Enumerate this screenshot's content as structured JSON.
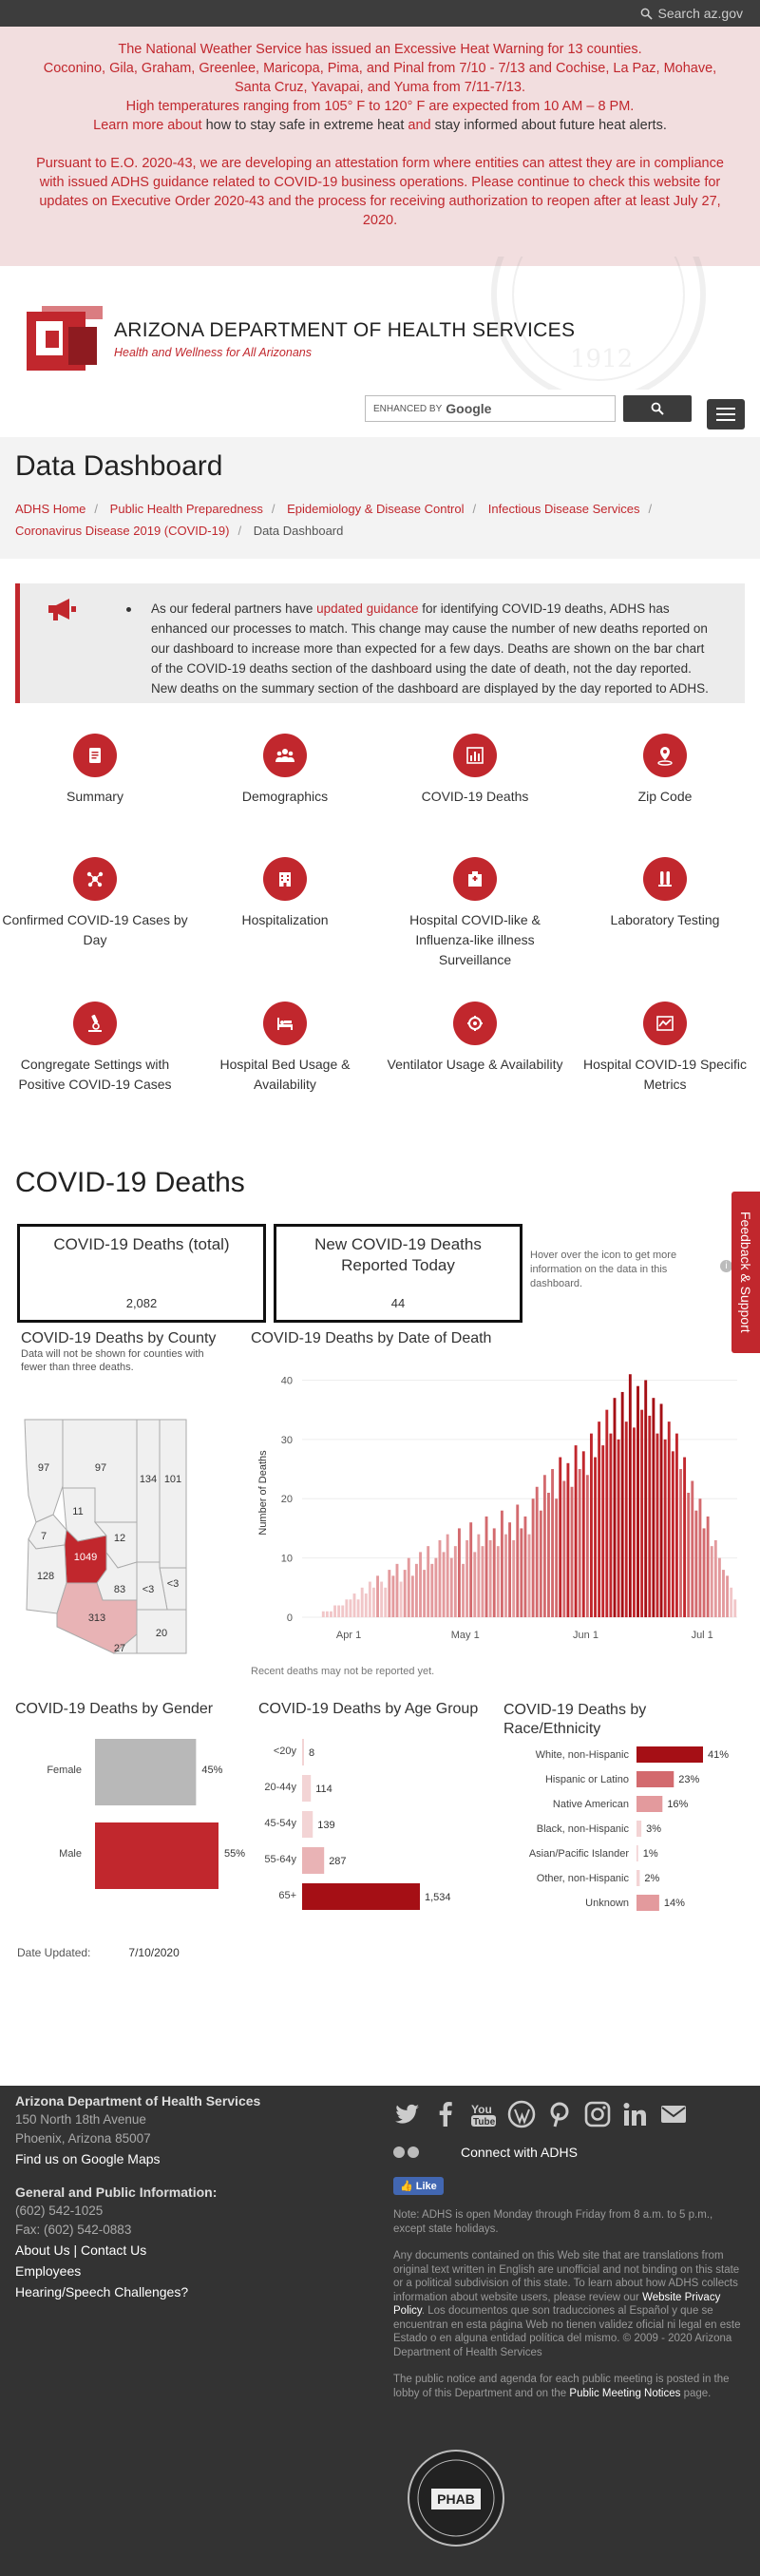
{
  "topbar": {
    "search_label": "Search az.gov"
  },
  "alert": {
    "line1": "The National Weather Service has issued an Excessive Heat Warning for 13 counties.",
    "line2": "Coconino, Gila, Graham, Greenlee, Maricopa, Pima, and Pinal from 7/10 - 7/13 and Cochise, La Paz, Mohave, Santa Cruz, Yavapai, and Yuma from 7/11-7/13.",
    "line3": "High temperatures ranging from 105° F to 120° F are expected from 10 AM – 8 PM.",
    "learn_link": "Learn more about",
    "learn_mid": " how to stay safe in extreme heat ",
    "learn_and": "and",
    "learn_end": " stay informed about future heat alerts.",
    "eo_a": "Pursuant to ",
    "eo_link": "E.O. 2020-43",
    "eo_b": ", we are developing an attestation form where entities can attest they are in compliance with issued ADHS guidance related to COVID-19 business operations. Please continue to check this website for updates on Executive Order 2020-43 and the process for receiving authorization to reopen after at least July 27, 2020."
  },
  "header": {
    "title": "ARIZONA DEPARTMENT OF HEALTH SERVICES",
    "subtitle": "Health and Wellness for All Arizonans",
    "seal_year": "1912",
    "search_enhanced": "ENHANCED BY",
    "search_google": "Google"
  },
  "page": {
    "title": "Data Dashboard",
    "crumbs": [
      "ADHS Home",
      "Public Health Preparedness",
      "Epidemiology & Disease Control",
      "Infectious Disease Services",
      "Coronavirus Disease 2019 (COVID-19)",
      "Data Dashboard"
    ]
  },
  "notice": {
    "a": "As our federal partners have ",
    "link": "updated guidance",
    "b": " for identifying COVID-19 deaths, ADHS has enhanced our processes to match. This change may cause the number of new deaths reported on our dashboard to increase more than expected for a few days. Deaths are shown on the bar chart of the COVID-19 deaths section of the dashboard using the date of death, not the day reported. New deaths on the summary section of the dashboard are displayed by the day reported to ADHS."
  },
  "categories": [
    {
      "label": "Summary",
      "icon": "document-icon"
    },
    {
      "label": "Demographics",
      "icon": "people-icon"
    },
    {
      "label": "COVID-19 Deaths",
      "icon": "bar-chart-icon"
    },
    {
      "label": "Zip Code",
      "icon": "map-pin-icon"
    },
    {
      "label": "Confirmed COVID-19 Cases by Day",
      "icon": "virus-icon"
    },
    {
      "label": "Hospitalization",
      "icon": "hospital-icon"
    },
    {
      "label": "Hospital COVID-like & Influenza-like illness Surveillance",
      "icon": "building-icon"
    },
    {
      "label": "Laboratory Testing",
      "icon": "test-tube-icon"
    },
    {
      "label": "Congregate Settings with Positive COVID-19 Cases",
      "icon": "microscope-icon"
    },
    {
      "label": "Hospital Bed Usage & Availability",
      "icon": "bed-icon"
    },
    {
      "label": "Ventilator Usage & Availability",
      "icon": "ventilator-icon"
    },
    {
      "label": "Hospital COVID-19 Specific Metrics",
      "icon": "trend-icon"
    }
  ],
  "deaths": {
    "section_title": "COVID-19 Deaths",
    "total_label": "COVID-19 Deaths (total)",
    "total_value": "2,082",
    "today_label": "New COVID-19 Deaths Reported Today",
    "today_value": "44",
    "hover_note": "Hover over the icon to get more information on the data in this dashboard.",
    "info_glyph": "i",
    "feedback": "Feedback & Support",
    "county_title": "COVID-19 Deaths by County",
    "county_sub": "Data will not be shown for counties with fewer than three deaths.",
    "county_values": [
      "97",
      "97",
      "134",
      "101",
      "11",
      "7",
      "1049",
      "12",
      "<3",
      "<3",
      "128",
      "83",
      "313",
      "20",
      "27"
    ],
    "date_title": "COVID-19 Deaths by Date of Death",
    "date_note": "Recent deaths may not be reported yet.",
    "gender_title": "COVID-19 Deaths by Gender",
    "age_title": "COVID-19 Deaths by Age Group",
    "race_title": "COVID-19 Deaths by Race/Ethnicity",
    "date_updated_label": "Date Updated:",
    "date_updated_value": "7/10/2020"
  },
  "chart_data": [
    {
      "type": "bar",
      "title": "COVID-19 Deaths by Date of Death",
      "ylabel": "Number of Deaths",
      "ylim": [
        0,
        42
      ],
      "yticks": [
        "0",
        "10",
        "20",
        "30",
        "40"
      ],
      "xticks": [
        "Apr 1",
        "May 1",
        "Jun 1",
        "Jul 1"
      ],
      "x_start": "2020-03-20",
      "x_end": "2020-07-10",
      "values": [
        0,
        0,
        0,
        0,
        0,
        1,
        1,
        1,
        2,
        2,
        2,
        3,
        3,
        4,
        3,
        5,
        4,
        6,
        5,
        7,
        6,
        5,
        8,
        7,
        9,
        6,
        8,
        10,
        7,
        9,
        11,
        8,
        12,
        9,
        10,
        13,
        11,
        14,
        10,
        12,
        15,
        9,
        13,
        16,
        11,
        14,
        12,
        17,
        13,
        15,
        12,
        18,
        14,
        16,
        13,
        19,
        15,
        17,
        14,
        20,
        22,
        18,
        24,
        21,
        25,
        20,
        27,
        23,
        26,
        22,
        29,
        25,
        28,
        24,
        31,
        27,
        33,
        29,
        35,
        31,
        37,
        30,
        38,
        33,
        41,
        32,
        39,
        35,
        40,
        34,
        37,
        31,
        36,
        30,
        33,
        28,
        31,
        25,
        27,
        21,
        23,
        18,
        20,
        15,
        17,
        12,
        13,
        10,
        8,
        7,
        5,
        3
      ]
    },
    {
      "type": "bar",
      "title": "COVID-19 Deaths by Gender",
      "categories": [
        "Female",
        "Male"
      ],
      "values": [
        45,
        55
      ],
      "labels": [
        "45%",
        "55%"
      ]
    },
    {
      "type": "bar",
      "title": "COVID-19 Deaths by Age Group",
      "categories": [
        "<20y",
        "20-44y",
        "45-54y",
        "55-64y",
        "65+"
      ],
      "values": [
        8,
        114,
        139,
        287,
        1534
      ],
      "labels": [
        "8",
        "114",
        "139",
        "287",
        "1,534"
      ]
    },
    {
      "type": "bar",
      "title": "COVID-19 Deaths by Race/Ethnicity",
      "categories": [
        "White, non-Hispanic",
        "Hispanic or Latino",
        "Native American",
        "Black, non-Hispanic",
        "Asian/Pacific Islander",
        "Other, non-Hispanic",
        "Unknown"
      ],
      "values": [
        41,
        23,
        16,
        3,
        1,
        2,
        14
      ],
      "labels": [
        "41%",
        "23%",
        "16%",
        "3%",
        "1%",
        "2%",
        "14%"
      ]
    }
  ],
  "colors": {
    "accent": "#c1272d",
    "dark_red": "#a50f15",
    "gray_bar": "#b8b8b8",
    "footer_bg": "#333333"
  },
  "footer": {
    "org": "Arizona Department of Health Services",
    "addr1": "150 North 18th Avenue",
    "addr2": "Phoenix, Arizona 85007",
    "maps": "Find us on Google Maps",
    "gen_title": "General and Public Information:",
    "phone": "(602) 542-1025",
    "fax": "Fax: (602) 542-0883",
    "links": [
      "About Us",
      "Contact Us",
      "Employees",
      "Hearing/Speech Challenges?"
    ],
    "link_sep": "|",
    "socials": [
      "twitter-icon",
      "facebook-icon",
      "youtube-icon",
      "wordpress-icon",
      "pinterest-icon",
      "instagram-icon",
      "linkedin-icon",
      "email-icon"
    ],
    "connect": "Connect with ADHS",
    "fb_like": "Like",
    "note1": "Note: ADHS is open Monday through Friday from 8 a.m. to 5 p.m., except state holidays.",
    "note2_a": "Any documents contained on this Web site that are translations from original text written in English are unofficial and not binding on this state or a political subdivision of this state. To learn about how ADHS collects information about website users, please review our ",
    "note2_link": "Website Privacy Policy",
    "note2_b": ". Los documentos que son traducciones al Español y que se encuentran en esta página Web no tienen validez oficial ni legal en este Estado o en alguna entidad política del mismo. © 2009 - 2020 Arizona Department of Health Services",
    "note3_a": "The public notice and agenda for each public meeting is posted in the lobby of this Department and on the ",
    "note3_link": "Public Meeting Notices",
    "note3_b": " page.",
    "phab": "PHAB"
  }
}
